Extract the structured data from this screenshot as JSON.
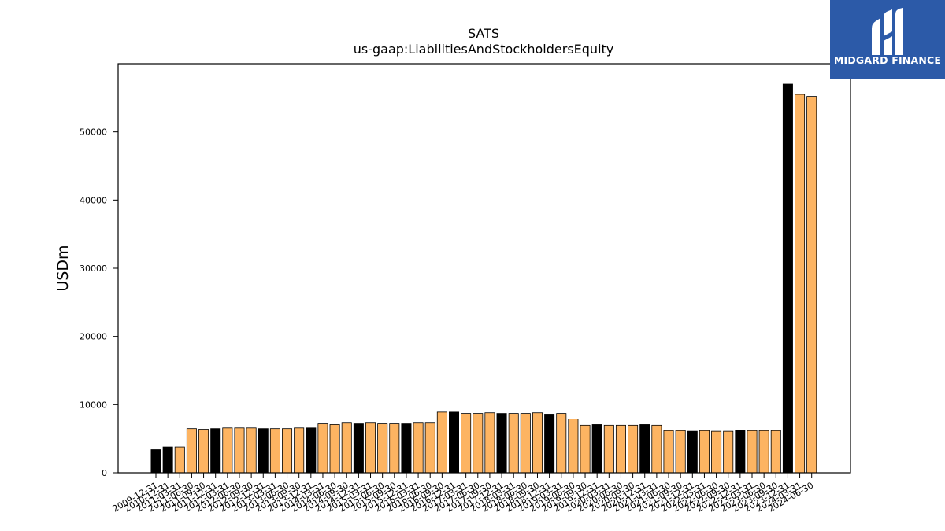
{
  "logo": {
    "icon": "midgard-finance-logo-icon",
    "name": "MIDGARD FINANCE",
    "background": "#2c5aa8"
  },
  "chart_data": {
    "type": "bar",
    "title": "SATS",
    "subtitle": "us-gaap:LiabilitiesAndStockholdersEquity",
    "xlabel": "",
    "ylabel": "USDm",
    "ylim": [
      0,
      60000
    ],
    "yticks": [
      0,
      10000,
      20000,
      30000,
      40000,
      50000
    ],
    "grid": false,
    "legend": "none",
    "colors": {
      "annual": "#000000",
      "quarterly": "#fdb462"
    },
    "categories": [
      "2009-12-31",
      "2010-12-31",
      "2011-03-31",
      "2011-06-30",
      "2011-09-30",
      "2011-12-31",
      "2012-03-31",
      "2012-06-30",
      "2012-09-30",
      "2012-12-31",
      "2013-03-31",
      "2013-06-30",
      "2013-09-30",
      "2013-12-31",
      "2014-03-31",
      "2014-06-30",
      "2014-09-30",
      "2014-12-31",
      "2015-03-31",
      "2015-06-30",
      "2015-09-30",
      "2015-12-31",
      "2016-03-31",
      "2016-06-30",
      "2016-09-30",
      "2016-12-31",
      "2017-03-31",
      "2017-06-30",
      "2017-09-30",
      "2017-12-31",
      "2018-03-31",
      "2018-06-30",
      "2018-09-30",
      "2018-12-31",
      "2019-03-31",
      "2019-06-30",
      "2019-09-30",
      "2019-12-31",
      "2020-03-31",
      "2020-06-30",
      "2020-09-30",
      "2020-12-31",
      "2021-03-31",
      "2021-06-30",
      "2021-09-30",
      "2021-12-31",
      "2022-03-31",
      "2022-06-30",
      "2022-09-30",
      "2022-12-31",
      "2023-03-31",
      "2023-06-30",
      "2023-09-30",
      "2023-12-31",
      "2024-03-31",
      "2024-06-30"
    ],
    "values": [
      3400,
      3800,
      3800,
      6500,
      6400,
      6500,
      6600,
      6600,
      6600,
      6500,
      6500,
      6500,
      6600,
      6600,
      7200,
      7100,
      7300,
      7200,
      7300,
      7200,
      7200,
      7200,
      7300,
      7300,
      8900,
      8900,
      8700,
      8700,
      8800,
      8700,
      8700,
      8700,
      8800,
      8600,
      8700,
      7900,
      7000,
      7100,
      7000,
      7000,
      7000,
      7100,
      7000,
      6200,
      6200,
      6100,
      6200,
      6100,
      6100,
      6200,
      6200,
      6200,
      6200,
      57000,
      55500,
      55200
    ],
    "annual_flags": [
      1,
      1,
      0,
      0,
      0,
      1,
      0,
      0,
      0,
      1,
      0,
      0,
      0,
      1,
      0,
      0,
      0,
      1,
      0,
      0,
      0,
      1,
      0,
      0,
      0,
      1,
      0,
      0,
      0,
      1,
      0,
      0,
      0,
      1,
      0,
      0,
      0,
      1,
      0,
      0,
      0,
      1,
      0,
      0,
      0,
      1,
      0,
      0,
      0,
      1,
      0,
      0,
      0,
      1,
      0,
      0
    ]
  }
}
